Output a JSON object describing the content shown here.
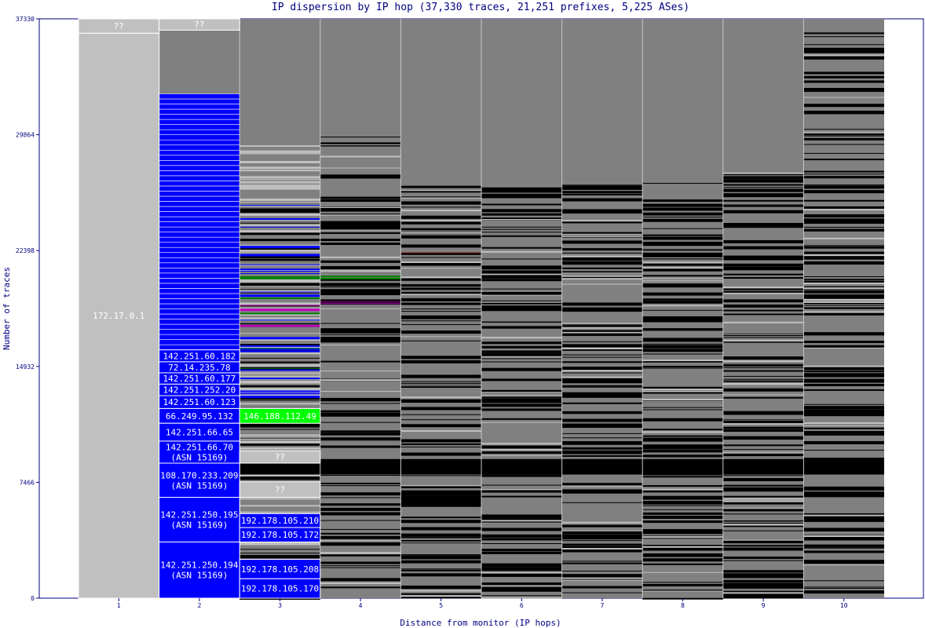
{
  "chart_data": {
    "type": "bar",
    "title": "IP dispersion by IP hop (37,330 traces, 21,251 prefixes, 5,225 ASes)",
    "xlabel": "Distance from monitor (IP hops)",
    "ylabel": "Number of traces",
    "categories": [
      "1",
      "2",
      "3",
      "4",
      "5",
      "6",
      "7",
      "8",
      "9",
      "10"
    ],
    "ylim": [
      0,
      37330
    ],
    "yticks": [
      "0",
      "7466",
      "14932",
      "22398",
      "29864",
      "37330"
    ],
    "ytick_values": [
      0,
      7466,
      14932,
      22398,
      29864,
      37330
    ],
    "colors": {
      "frame": "#000080",
      "background": "#808080",
      "unknown": "#c0c0c0",
      "asn15169": "#0000ff",
      "other": "#000000",
      "separator": "#c8c8c8"
    },
    "labeled_segments": [
      {
        "hop": 1,
        "label": "??",
        "from": 36400,
        "to": 37330,
        "color": "#c0c0c0"
      },
      {
        "hop": 1,
        "label": "172.17.0.1",
        "from": 0,
        "to": 36400,
        "color": "#c0c0c0"
      },
      {
        "hop": 2,
        "label": "??",
        "from": 36600,
        "to": 37330,
        "color": "#c0c0c0"
      },
      {
        "hop": 2,
        "label": "142.251.60.182",
        "from": 15230,
        "to": 16000,
        "color": "#0000ff"
      },
      {
        "hop": 2,
        "label": "72.14.235.78",
        "from": 14520,
        "to": 15230,
        "color": "#0000ff"
      },
      {
        "hop": 2,
        "label": "142.251.60.177",
        "from": 13790,
        "to": 14520,
        "color": "#0000ff"
      },
      {
        "hop": 2,
        "label": "142.251.252.20",
        "from": 13050,
        "to": 13790,
        "color": "#0000ff"
      },
      {
        "hop": 2,
        "label": "142.251.60.123",
        "from": 12220,
        "to": 13050,
        "color": "#0000ff"
      },
      {
        "hop": 2,
        "label": "66.249.95.132",
        "from": 11270,
        "to": 12220,
        "color": "#0000ff"
      },
      {
        "hop": 2,
        "label": "142.251.66.65",
        "from": 10120,
        "to": 11270,
        "color": "#0000ff"
      },
      {
        "hop": 2,
        "label": "142.251.66.70 (ASN 15169)",
        "from": 8700,
        "to": 10120,
        "color": "#0000ff"
      },
      {
        "hop": 2,
        "label": "108.170.233.209 (ASN 15169)",
        "from": 6500,
        "to": 8700,
        "color": "#0000ff"
      },
      {
        "hop": 2,
        "label": "142.251.250.195 (ASN 15169)",
        "from": 3620,
        "to": 6500,
        "color": "#0000ff"
      },
      {
        "hop": 2,
        "label": "142.251.250.194 (ASN 15169)",
        "from": 0,
        "to": 3620,
        "color": "#0000ff"
      },
      {
        "hop": 3,
        "label": "146.188.112.49",
        "from": 11270,
        "to": 12220,
        "color": "#00ff00"
      },
      {
        "hop": 3,
        "label": "??",
        "from": 8700,
        "to": 9500,
        "color": "#c0c0c0"
      },
      {
        "hop": 3,
        "label": "??",
        "from": 6500,
        "to": 7500,
        "color": "#c0c0c0"
      },
      {
        "hop": 3,
        "label": "192.178.105.210",
        "from": 4550,
        "to": 5450,
        "color": "#0000ff"
      },
      {
        "hop": 3,
        "label": "192.178.105.172",
        "from": 3620,
        "to": 4550,
        "color": "#0000ff"
      },
      {
        "hop": 3,
        "label": "192.178.105.208",
        "from": 1250,
        "to": 2500,
        "color": "#0000ff"
      },
      {
        "hop": 3,
        "label": "192.178.105.170",
        "from": 0,
        "to": 1250,
        "color": "#0000ff"
      }
    ]
  }
}
